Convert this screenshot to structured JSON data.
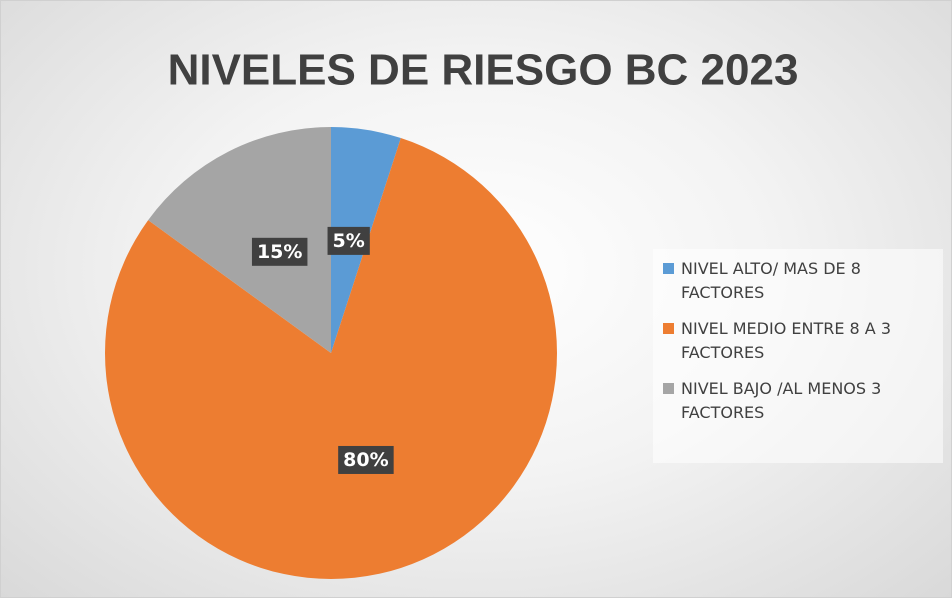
{
  "chart_data": {
    "type": "pie",
    "title": "NIVELES DE RIESGO BC 2023",
    "categories": [
      "NIVEL ALTO/ MAS DE 8 FACTORES",
      "NIVEL MEDIO ENTRE 8 A 3 FACTORES",
      "NIVEL BAJO /AL MENOS 3 FACTORES"
    ],
    "values": [
      5,
      80,
      15
    ],
    "value_labels": [
      "5%",
      "80%",
      "15%"
    ],
    "colors": [
      "#5b9bd5",
      "#ed7d31",
      "#a5a5a5"
    ],
    "legend": "right"
  }
}
